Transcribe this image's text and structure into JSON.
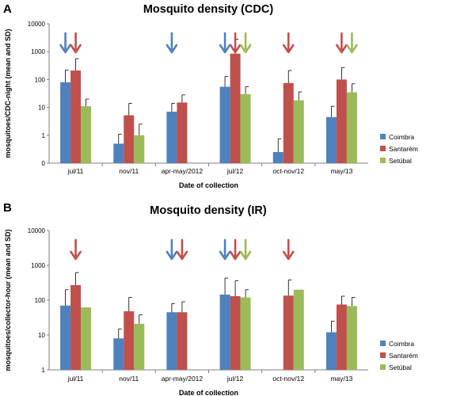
{
  "colors": {
    "Coimbra": "#4F81BD",
    "Santarém": "#C0504D",
    "Setúbal": "#9BBB59"
  },
  "chart_data": [
    {
      "panel": "A",
      "type": "bar",
      "title": "Mosquito density (CDC)",
      "xlabel": "Date of collection",
      "ylabel": "mosquitoes/CDC-night (mean and SD)",
      "yscale": "log",
      "ylim": [
        0,
        10000
      ],
      "yticks": [
        "0",
        "1",
        "10",
        "100",
        "1000",
        "10000"
      ],
      "categories": [
        "jul/11",
        "nov/11",
        "apr-may/2012",
        "jul/12",
        "oct-nov/12",
        "may/13"
      ],
      "legend_position": "right",
      "series": [
        {
          "name": "Coimbra",
          "values": [
            80,
            0.5,
            7,
            55,
            0.25,
            4.5
          ],
          "sd_upper": [
            220,
            1.1,
            14,
            130,
            0.75,
            11
          ]
        },
        {
          "name": "Santarém",
          "values": [
            210,
            5.2,
            15,
            850,
            75,
            100
          ],
          "sd_upper": [
            560,
            14,
            28,
            2800,
            210,
            270
          ]
        },
        {
          "name": "Setúbal",
          "values": [
            11,
            1,
            null,
            30,
            18,
            35
          ],
          "sd_upper": [
            20,
            2.5,
            null,
            55,
            36,
            70
          ]
        }
      ],
      "arrows": [
        {
          "category": "jul/11",
          "series": "Coimbra"
        },
        {
          "category": "jul/11",
          "series": "Santarém"
        },
        {
          "category": "apr-may/2012",
          "series": "Coimbra"
        },
        {
          "category": "jul/12",
          "series": "Coimbra"
        },
        {
          "category": "jul/12",
          "series": "Santarém"
        },
        {
          "category": "jul/12",
          "series": "Setúbal"
        },
        {
          "category": "oct-nov/12",
          "series": "Santarém"
        },
        {
          "category": "may/13",
          "series": "Santarém"
        },
        {
          "category": "may/13",
          "series": "Setúbal"
        }
      ]
    },
    {
      "panel": "B",
      "type": "bar",
      "title": "Mosquito density (IR)",
      "xlabel": "Date of collection",
      "ylabel": "mosquitoes/collector-hour (mean and SD)",
      "yscale": "log",
      "ylim": [
        1,
        10000
      ],
      "yticks": [
        "1",
        "10",
        "100",
        "1000",
        "10000"
      ],
      "categories": [
        "jul/11",
        "nov/11",
        "apr-may/2012",
        "jul/12",
        "oct-nov/12",
        "may/13"
      ],
      "legend_position": "right",
      "series": [
        {
          "name": "Coimbra",
          "values": [
            70,
            8,
            45,
            145,
            null,
            12
          ],
          "sd_upper": [
            200,
            15,
            80,
            430,
            null,
            25
          ]
        },
        {
          "name": "Santarém",
          "values": [
            270,
            48,
            45,
            130,
            135,
            75
          ],
          "sd_upper": [
            620,
            120,
            90,
            360,
            380,
            130
          ]
        },
        {
          "name": "Setúbal",
          "values": [
            62,
            21,
            null,
            120,
            200,
            68
          ],
          "sd_upper": [
            62,
            38,
            null,
            200,
            200,
            120
          ]
        }
      ],
      "arrows": [
        {
          "category": "jul/11",
          "series": "Santarém"
        },
        {
          "category": "apr-may/2012",
          "series": "Coimbra"
        },
        {
          "category": "apr-may/2012",
          "series": "Santarém"
        },
        {
          "category": "jul/12",
          "series": "Coimbra"
        },
        {
          "category": "jul/12",
          "series": "Santarém"
        },
        {
          "category": "jul/12",
          "series": "Setúbal"
        },
        {
          "category": "oct-nov/12",
          "series": "Santarém"
        }
      ]
    }
  ]
}
